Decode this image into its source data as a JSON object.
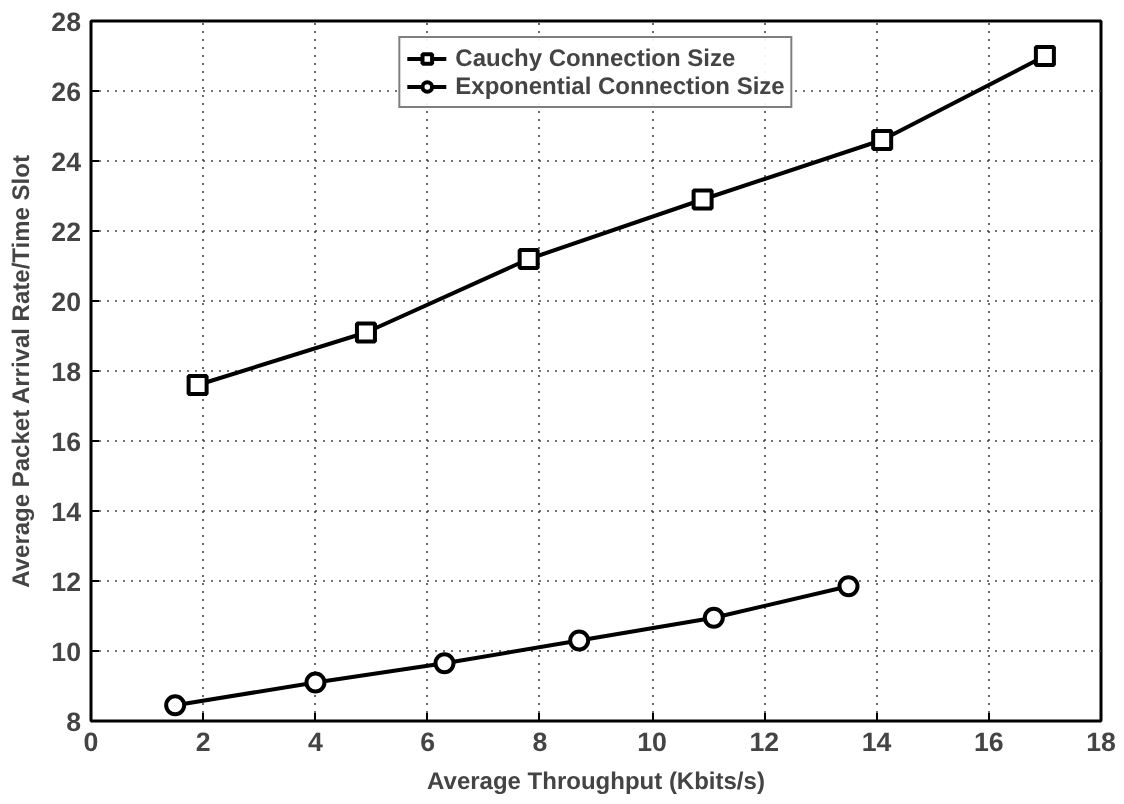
{
  "chart_data": {
    "type": "line",
    "xlabel": "Average Throughput (Kbits/s)",
    "ylabel": "Average Packet Arrival Rate/Time Slot",
    "xlim": [
      0,
      18
    ],
    "ylim": [
      8,
      28
    ],
    "xticks": [
      0,
      2,
      4,
      6,
      8,
      10,
      12,
      14,
      16,
      18
    ],
    "yticks": [
      8,
      10,
      12,
      14,
      16,
      18,
      20,
      22,
      24,
      26,
      28
    ],
    "grid": true,
    "legend": "top",
    "line_style": "solid",
    "series": [
      {
        "name": "Cauchy Connection Size",
        "color": "#000000",
        "marker": "square",
        "x": [
          1.9,
          4.9,
          7.8,
          10.9,
          14.1,
          17.0
        ],
        "values": [
          17.6,
          19.1,
          21.2,
          22.9,
          24.6,
          27.0
        ]
      },
      {
        "name": "Exponential Connection Size",
        "color": "#000000",
        "marker": "circle",
        "x": [
          1.5,
          4.0,
          6.3,
          8.7,
          11.1,
          13.5
        ],
        "values": [
          8.45,
          9.1,
          9.65,
          10.3,
          10.95,
          11.85
        ]
      }
    ]
  }
}
